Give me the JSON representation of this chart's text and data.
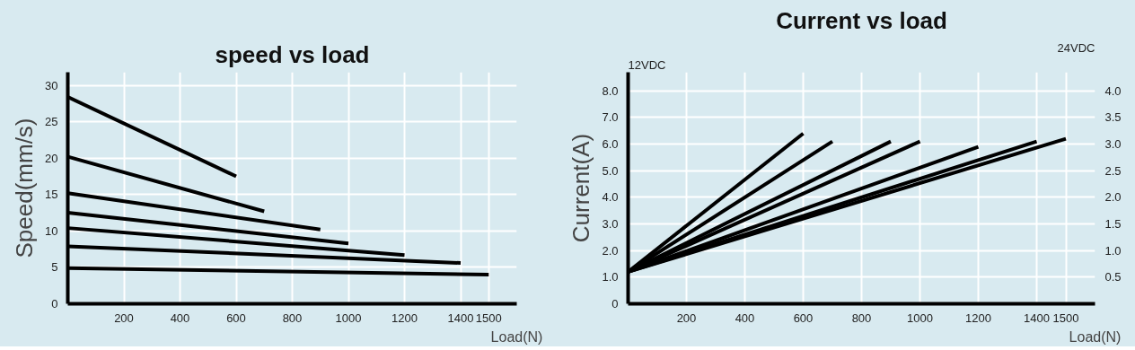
{
  "chart_data": [
    {
      "type": "line",
      "title": "speed vs load",
      "xlabel": "Load(N)",
      "ylabel": "Speed(mm/s)",
      "xlim": [
        0,
        1600
      ],
      "xticks": [
        200,
        400,
        600,
        800,
        1000,
        1200,
        1400,
        1500
      ],
      "ylim": [
        0,
        31.8
      ],
      "yticks": [
        0,
        5,
        10,
        15,
        20,
        25,
        30
      ],
      "grid": true,
      "marker": "none",
      "line_style": "solid",
      "series": [
        {
          "color": "#000000",
          "x": [
            0,
            600
          ],
          "values": [
            28.4,
            17.5
          ]
        },
        {
          "color": "#000000",
          "x": [
            0,
            700
          ],
          "values": [
            20.2,
            12.7
          ]
        },
        {
          "color": "#000000",
          "x": [
            0,
            900
          ],
          "values": [
            15.2,
            10.2
          ]
        },
        {
          "color": "#000000",
          "x": [
            0,
            1000
          ],
          "values": [
            12.5,
            8.3
          ]
        },
        {
          "color": "#000000",
          "x": [
            0,
            1200
          ],
          "values": [
            10.4,
            6.7
          ]
        },
        {
          "color": "#000000",
          "x": [
            0,
            1400
          ],
          "values": [
            7.9,
            5.6
          ]
        },
        {
          "color": "#000000",
          "x": [
            0,
            1500
          ],
          "values": [
            4.9,
            4.0
          ]
        }
      ]
    },
    {
      "type": "line",
      "title": "Current vs load",
      "xlabel": "Load(N)",
      "ylabel": "Current(A)",
      "annotations": [
        "12VDC",
        "24VDC"
      ],
      "xlim": [
        0,
        1600
      ],
      "xticks": [
        200,
        400,
        600,
        800,
        1000,
        1200,
        1400,
        1500
      ],
      "ylim": [
        0,
        8.7
      ],
      "yticks": [
        0,
        {
          "value": 1,
          "label": "1.0"
        },
        {
          "value": 2,
          "label": "2.0"
        },
        {
          "value": 3,
          "label": "3.0"
        },
        {
          "value": 4,
          "label": "4.0"
        },
        {
          "value": 5,
          "label": "5.0"
        },
        {
          "value": 6,
          "label": "6.0"
        },
        {
          "value": 7,
          "label": "7.0"
        },
        {
          "value": 8,
          "label": "8.0"
        }
      ],
      "y2lim": [
        0,
        4.35
      ],
      "y2ticks": [
        0.5,
        {
          "value": 1,
          "label": "1.0"
        },
        1.5,
        {
          "value": 2,
          "label": "2.0"
        },
        2.5,
        {
          "value": 3,
          "label": "3.0"
        },
        3.5,
        {
          "value": 4,
          "label": "4.0"
        }
      ],
      "grid": true,
      "marker": "none",
      "line_style": "solid",
      "series": [
        {
          "color": "#000000",
          "x": [
            0,
            600
          ],
          "values": [
            1.2,
            6.4
          ]
        },
        {
          "color": "#000000",
          "x": [
            0,
            700
          ],
          "values": [
            1.2,
            6.1
          ]
        },
        {
          "color": "#000000",
          "x": [
            0,
            900
          ],
          "values": [
            1.2,
            6.1
          ]
        },
        {
          "color": "#000000",
          "x": [
            0,
            1000
          ],
          "values": [
            1.2,
            6.1
          ]
        },
        {
          "color": "#000000",
          "x": [
            0,
            1200
          ],
          "values": [
            1.2,
            5.9
          ]
        },
        {
          "color": "#000000",
          "x": [
            0,
            1400
          ],
          "values": [
            1.2,
            6.1
          ]
        },
        {
          "color": "#000000",
          "x": [
            0,
            1500
          ],
          "values": [
            1.2,
            6.2
          ]
        }
      ]
    }
  ]
}
